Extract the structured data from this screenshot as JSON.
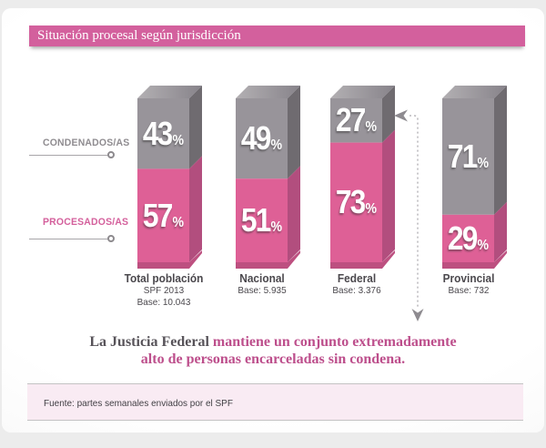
{
  "header": {
    "title": "Situación procesal según jurisdicción"
  },
  "legend": {
    "condenados": {
      "label": "CONDENADOS/AS",
      "color": "#8f8c90"
    },
    "procesados": {
      "label": "PROCESADOS/AS",
      "color": "#d4609c"
    }
  },
  "chart_data": {
    "type": "bar",
    "stacked": true,
    "orientation": "vertical",
    "value_unit": "%",
    "ylim": [
      0,
      100
    ],
    "grid": false,
    "legend_position": "left",
    "categories": [
      "Total población",
      "Nacional",
      "Federal",
      "Provincial"
    ],
    "category_sublabels": [
      [
        "SPF 2013",
        "Base: 10.043"
      ],
      [
        "Base: 5.935"
      ],
      [
        "Base: 3.376"
      ],
      [
        "Base: 732"
      ]
    ],
    "series": [
      {
        "name": "CONDENADOS/AS",
        "values": [
          43,
          49,
          27,
          71
        ],
        "color": "#98949a"
      },
      {
        "name": "PROCESADOS/AS",
        "values": [
          57,
          51,
          73,
          29
        ],
        "color": "#de6096"
      }
    ],
    "annotation_arrow_target": "Federal"
  },
  "caption": {
    "line1_dark": "La Justicia Federal",
    "line1_pink": "mantiene un conjunto extremadamente",
    "line2_pink": "alto de personas encarceladas sin condena."
  },
  "footer": {
    "text": "Fuente: partes semanales enviados por el SPF"
  },
  "colors": {
    "title_bar": "#d3609d",
    "gray_front": "#98949a",
    "gray_side": "#6f6b70",
    "gray_top_light": "#b3b0b3",
    "gray_top_dark": "#87838a",
    "pink_front": "#de6096",
    "pink_side": "#b24e7e",
    "pink_bottom": "#bd5080",
    "arrow": "#a9a7ab"
  }
}
